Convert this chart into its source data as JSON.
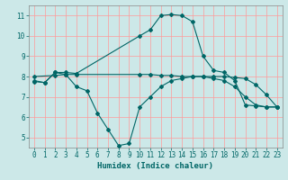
{
  "bg_color": "#cce8e8",
  "grid_color": "#ff9999",
  "line_color": "#006666",
  "xlabel": "Humidex (Indice chaleur)",
  "xlim": [
    -0.5,
    23.5
  ],
  "ylim": [
    4.5,
    11.5
  ],
  "yticks": [
    5,
    6,
    7,
    8,
    9,
    10,
    11
  ],
  "xticks": [
    0,
    1,
    2,
    3,
    4,
    5,
    6,
    7,
    8,
    9,
    10,
    11,
    12,
    13,
    14,
    15,
    16,
    17,
    18,
    19,
    20,
    21,
    22,
    23
  ],
  "curve1_x": [
    0,
    1,
    2,
    3,
    4,
    10,
    11,
    12,
    13,
    14,
    15,
    16,
    17,
    18,
    19,
    20,
    21,
    22,
    23
  ],
  "curve1_y": [
    7.8,
    7.7,
    8.2,
    8.2,
    8.15,
    10.0,
    10.3,
    11.0,
    11.05,
    11.0,
    10.7,
    9.0,
    8.3,
    8.2,
    7.8,
    6.6,
    6.55,
    6.5,
    6.5
  ],
  "curve2_x": [
    0,
    2,
    3,
    4,
    10,
    11,
    12,
    13,
    14,
    15,
    16,
    17,
    18,
    19,
    20,
    21,
    22,
    23
  ],
  "curve2_y": [
    8.0,
    8.05,
    8.1,
    8.1,
    8.1,
    8.1,
    8.05,
    8.05,
    8.0,
    8.0,
    8.0,
    8.0,
    8.0,
    7.95,
    7.9,
    7.6,
    7.1,
    6.5
  ],
  "curve3_x": [
    0,
    1,
    2,
    3,
    4,
    5,
    6,
    7,
    8,
    9,
    10,
    11,
    12,
    13,
    14,
    15,
    16,
    17,
    18,
    19,
    20,
    21,
    22,
    23
  ],
  "curve3_y": [
    7.75,
    7.7,
    8.2,
    8.1,
    7.5,
    7.3,
    6.2,
    5.4,
    4.6,
    4.7,
    6.5,
    7.0,
    7.5,
    7.8,
    7.9,
    8.0,
    8.0,
    7.9,
    7.8,
    7.5,
    7.0,
    6.6,
    6.5,
    6.5
  ]
}
